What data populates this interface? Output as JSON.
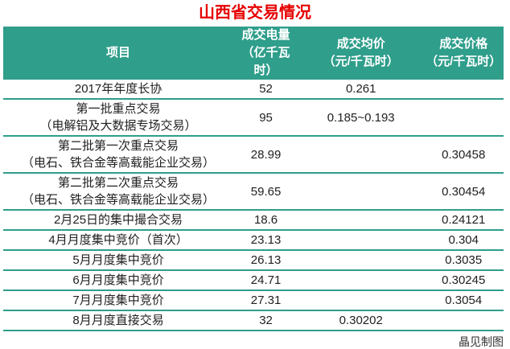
{
  "title": "山西省交易情况",
  "caption": "晶见制图",
  "colors": {
    "header_bg": "#2f9e8b",
    "divider": "#2f9e8b",
    "title_red": "#e60000",
    "header_text": "#ffffff",
    "body_text": "#212121"
  },
  "table": {
    "columns": [
      {
        "label": "项目",
        "unit": ""
      },
      {
        "label": "成交电量",
        "unit": "（亿千瓦时）"
      },
      {
        "label": "成交均价",
        "unit": "（元/千瓦时）"
      },
      {
        "label": "成交价格",
        "unit": "（元/千瓦时）"
      }
    ],
    "rows": [
      {
        "name": "2017年年度长协",
        "sub": "",
        "volume": "52",
        "avg_price": "0.261",
        "deal_price": ""
      },
      {
        "name": "第一批重点交易",
        "sub": "（电解铝及大数据专场交易）",
        "volume": "95",
        "avg_price": "0.185~0.193",
        "deal_price": ""
      },
      {
        "name": "第二批第一次重点交易",
        "sub": "（电石、铁合金等高载能企业交易）",
        "volume": "28.99",
        "avg_price": "",
        "deal_price": "0.30458"
      },
      {
        "name": "第二批第二次重点交易",
        "sub": "（电石、铁合金等高载能企业交易）",
        "volume": "59.65",
        "avg_price": "",
        "deal_price": "0.30454"
      },
      {
        "name": "2月25日的集中撮合交易",
        "sub": "",
        "volume": "18.6",
        "avg_price": "",
        "deal_price": "0.24121"
      },
      {
        "name": "4月月度集中竞价（首次）",
        "sub": "",
        "volume": "23.13",
        "avg_price": "",
        "deal_price": "0.304"
      },
      {
        "name": "5月月度集中竞价",
        "sub": "",
        "volume": "26.13",
        "avg_price": "",
        "deal_price": "0.3035"
      },
      {
        "name": "6月月度集中竞价",
        "sub": "",
        "volume": "24.71",
        "avg_price": "",
        "deal_price": "0.30245"
      },
      {
        "name": "7月月度集中竞价",
        "sub": "",
        "volume": "27.31",
        "avg_price": "",
        "deal_price": "0.3054"
      },
      {
        "name": "8月月度直接交易",
        "sub": "",
        "volume": "32",
        "avg_price": "0.30202",
        "deal_price": ""
      }
    ]
  },
  "chart_data": {
    "type": "table",
    "title": "山西省交易情况",
    "columns": [
      "项目",
      "成交电量（亿千瓦时）",
      "成交均价（元/千瓦时）",
      "成交价格（元/千瓦时）"
    ],
    "rows": [
      [
        "2017年年度长协",
        52,
        "0.261",
        null
      ],
      [
        "第一批重点交易（电解铝及大数据专场交易）",
        95,
        "0.185~0.193",
        null
      ],
      [
        "第二批第一次重点交易（电石、铁合金等高载能企业交易）",
        28.99,
        null,
        0.30458
      ],
      [
        "第二批第二次重点交易（电石、铁合金等高载能企业交易）",
        59.65,
        null,
        0.30454
      ],
      [
        "2月25日的集中撮合交易",
        18.6,
        null,
        0.24121
      ],
      [
        "4月月度集中竞价（首次）",
        23.13,
        null,
        0.304
      ],
      [
        "5月月度集中竞价",
        26.13,
        null,
        0.3035
      ],
      [
        "6月月度集中竞价",
        24.71,
        null,
        0.30245
      ],
      [
        "7月月度集中竞价",
        27.31,
        null,
        0.3054
      ],
      [
        "8月月度直接交易",
        32,
        0.30202,
        null
      ]
    ],
    "credit": "晶见制图"
  }
}
